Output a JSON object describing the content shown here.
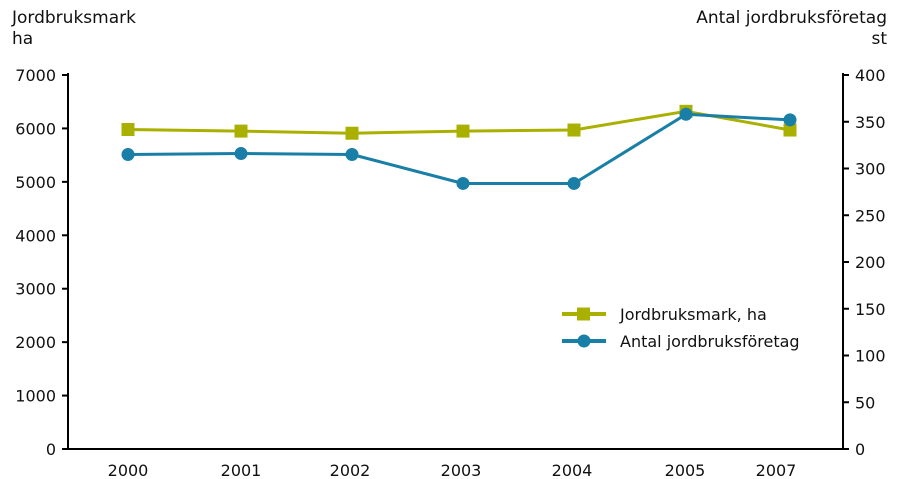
{
  "chart_data": {
    "type": "line",
    "categories": [
      "2000",
      "2001",
      "2002",
      "2003",
      "2004",
      "2005",
      "2007"
    ],
    "y_left": {
      "label": "Jordbruksmark",
      "unit": "ha",
      "range": [
        0,
        7000
      ],
      "ticks": [
        0,
        1000,
        2000,
        3000,
        4000,
        5000,
        6000,
        7000
      ]
    },
    "y_right": {
      "label": "Antal jordbruksföretag",
      "unit": "st",
      "range": [
        0,
        400
      ],
      "ticks": [
        0,
        50,
        100,
        150,
        200,
        250,
        300,
        350,
        400
      ]
    },
    "series": [
      {
        "name": "Jordbruksmark, ha",
        "axis": "left",
        "marker": "square",
        "color": "#aab000",
        "values": [
          5980,
          5950,
          5910,
          5950,
          5970,
          6320,
          5970
        ]
      },
      {
        "name": "Antal jordbruksföretag",
        "axis": "right",
        "marker": "circle",
        "color": "#1a7fa6",
        "values": [
          315,
          316,
          315,
          284,
          284,
          358,
          352
        ]
      }
    ],
    "grid": false,
    "legend_position": "center-right"
  }
}
